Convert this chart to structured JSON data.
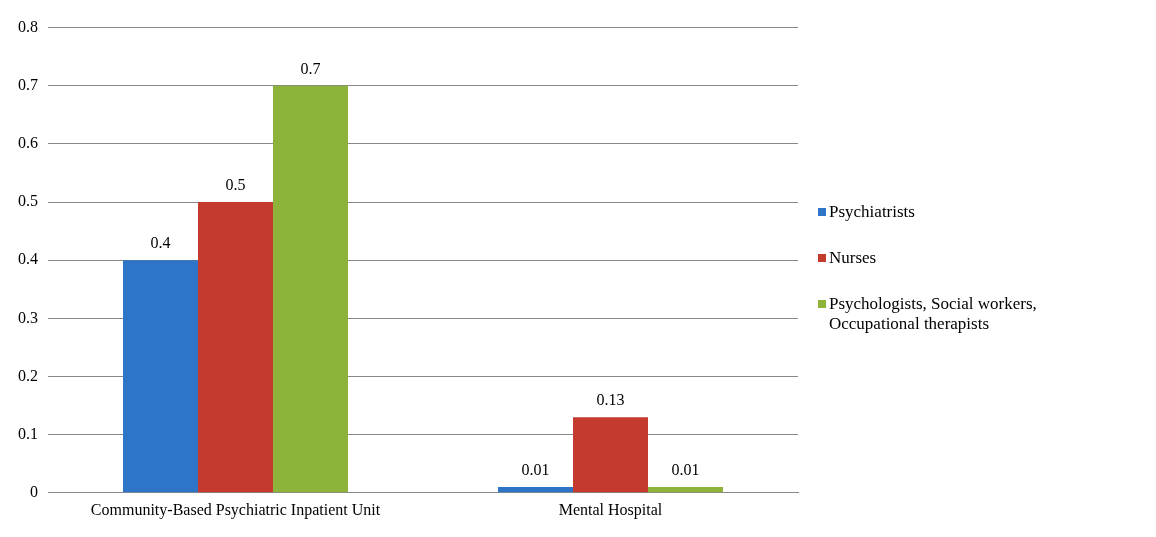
{
  "chart_data": {
    "type": "bar",
    "categories": [
      "Community-Based Psychiatric Inpatient Unit",
      "Mental Hospital"
    ],
    "series": [
      {
        "name": "Psychiatrists",
        "color": "#2e75c8",
        "values": [
          0.4,
          0.01
        ]
      },
      {
        "name": "Nurses",
        "color": "#c43a2e",
        "values": [
          0.5,
          0.13
        ]
      },
      {
        "name": "Psychologists, Social workers, Occupational therapists",
        "color": "#8db33a",
        "values": [
          0.7,
          0.01
        ]
      }
    ],
    "ylim": [
      0,
      0.8
    ],
    "yticks": [
      0,
      0.1,
      0.2,
      0.3,
      0.4,
      0.5,
      0.6,
      0.7,
      0.8
    ],
    "grid": "y",
    "legend": "right",
    "data_labels": true
  }
}
